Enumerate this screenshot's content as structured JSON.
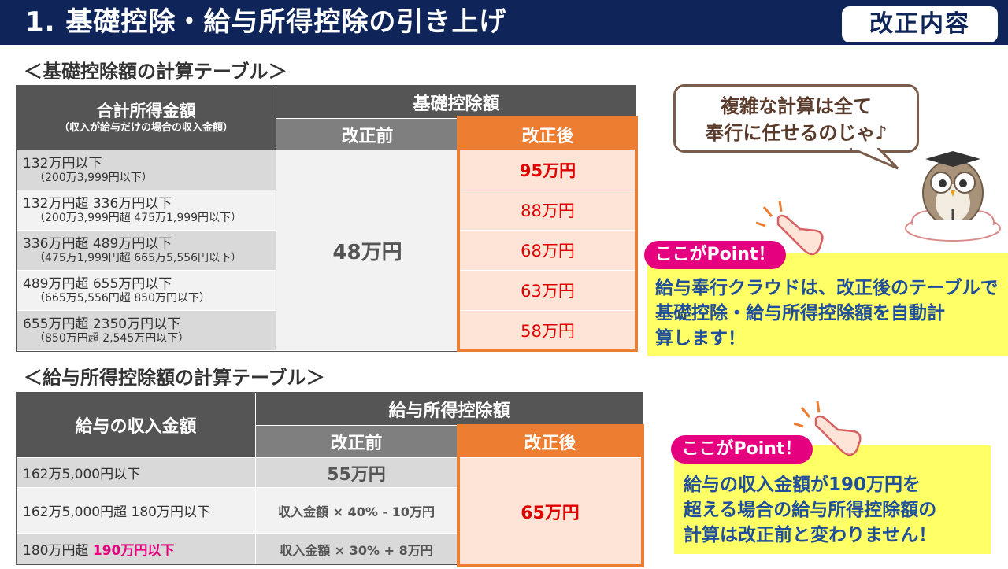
{
  "header": {
    "title": "1. 基礎控除・給与所得控除の引き上げ",
    "badge": "改正内容"
  },
  "table1": {
    "title": "＜基礎控除額の計算テーブル＞",
    "col1_header": "合計所得金額",
    "col1_sub": "（収入が給与だけの場合の収入金額）",
    "group_header": "基礎控除額",
    "before_header": "改正前",
    "after_header": "改正後",
    "before_value": "48万円",
    "rows": [
      {
        "range": "132万円以下",
        "income": "（200万3,999円以下）",
        "after": "95万円"
      },
      {
        "range": "132万円超 336万円以下",
        "income": "（200万3,999円超 475万1,999円以下）",
        "after": "88万円"
      },
      {
        "range": "336万円超 489万円以下",
        "income": "（475万1,999円超 665万5,556円以下）",
        "after": "68万円"
      },
      {
        "range": "489万円超 655万円以下",
        "income": "（665万5,556円超 850万円以下）",
        "after": "63万円"
      },
      {
        "range": "655万円超 2350万円以下",
        "income": "（850万円超 2,545万円以下）",
        "after": "58万円"
      }
    ]
  },
  "table2": {
    "title": "＜給与所得控除額の計算テーブル＞",
    "col1_header": "給与の収入金額",
    "group_header": "給与所得控除額",
    "before_header": "改正前",
    "after_header": "改正後",
    "after_value": "65万円",
    "rows": [
      {
        "range": "162万5,000円以下",
        "range_highlight": "",
        "before": "55万円"
      },
      {
        "range": "162万5,000円超 180万円以下",
        "range_highlight": "",
        "before": "収入金額 × 40% - 10万円"
      },
      {
        "range": "180万円超 ",
        "range_highlight": "190万円以下",
        "before": "収入金額 × 30% + 8万円"
      }
    ]
  },
  "bubble": {
    "line1": "複雑な計算は全て",
    "line2": "奉行に任せるのじゃ♪"
  },
  "point1": {
    "tag": "ここがPoint！",
    "lines": [
      "給与奉行クラウドは、改正後のテーブルで",
      "基礎控除・給与所得控除額を自動計",
      "算します！"
    ]
  },
  "point2": {
    "tag": "ここがPoint！",
    "lines": [
      "給与の収入金額が190万円を",
      "超える場合の給与所得控除額の",
      "計算は改正前と変わりません！"
    ]
  },
  "colors": {
    "navy": "#0f2559",
    "orange": "#ed7d31",
    "pink": "#e4007f",
    "yellow": "#ffff66",
    "red": "#e00000",
    "blue_text": "#1f4e9a"
  },
  "icons": [
    "owl-mascot-icon",
    "pointing-hand-icon"
  ]
}
